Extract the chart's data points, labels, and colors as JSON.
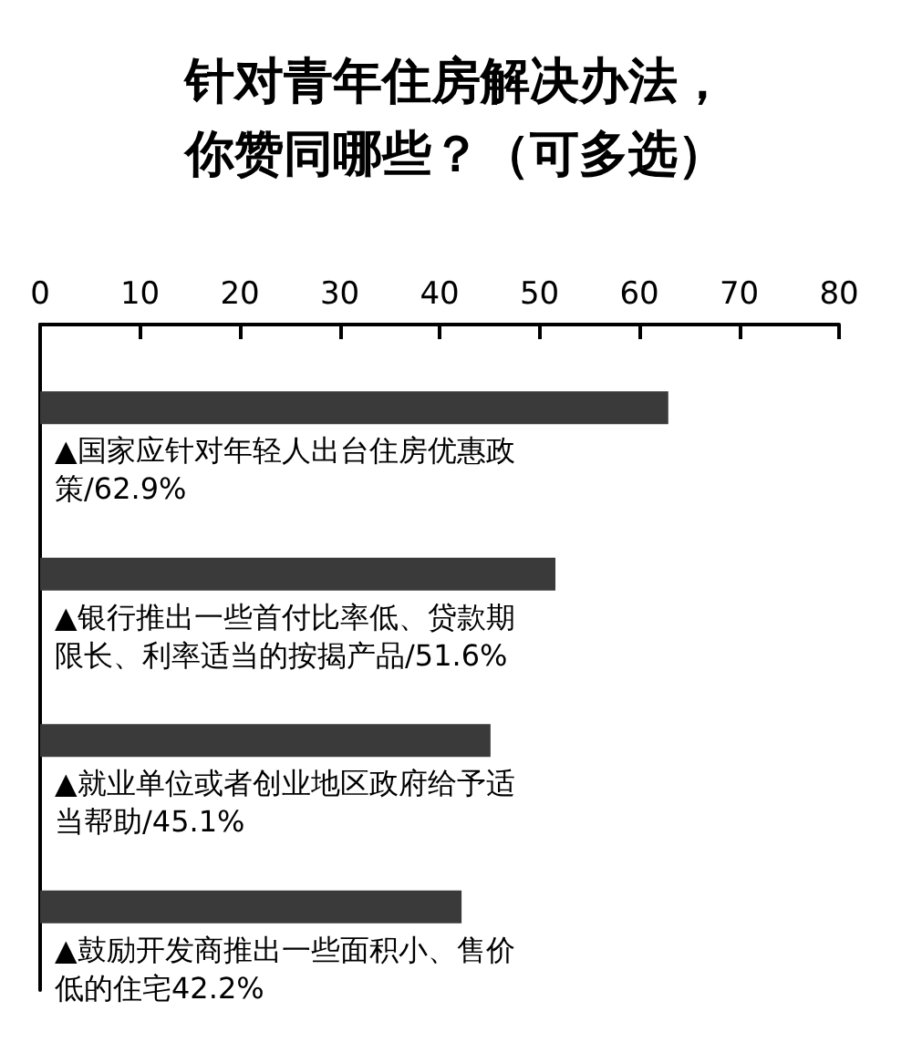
{
  "chart_data": {
    "type": "bar",
    "orientation": "horizontal",
    "title": "针对青年住房解决办法，你赞同哪些？（可多选）",
    "categories": [
      "▲国家应针对年轻人出台住房优惠政策",
      "▲银行推出一些首付比率低、贷款期限长、利率适当的按揭产品",
      "▲就业单位或者创业地区政府给予适当帮助",
      "▲鼓励开发商推出一些面积小、售价低的住宅"
    ],
    "values": [
      62.9,
      51.6,
      45.1,
      42.2
    ],
    "value_labels": [
      "/62.9%",
      "/51.6%",
      "/45.1%",
      "42.2%"
    ],
    "color": "#3a3a3a",
    "xlim": [
      0,
      80
    ],
    "xticks": [
      0,
      10,
      20,
      30,
      40,
      50,
      60,
      70,
      80
    ],
    "grid": false
  }
}
